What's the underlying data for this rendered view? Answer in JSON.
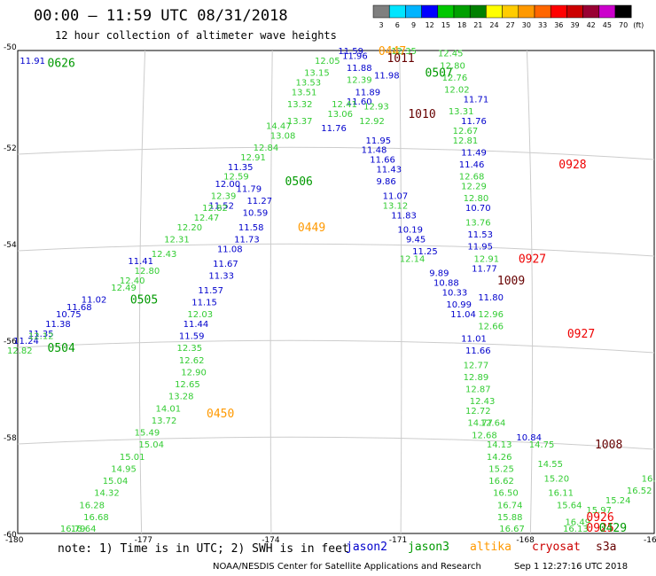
{
  "header": {
    "title": "00:00 – 11:59 UTC 08/31/2018",
    "subtitle": "12 hour collection of altimeter wave heights"
  },
  "colorbar": {
    "unit_label": "(ft)",
    "labels": [
      "3",
      "6",
      "9",
      "12",
      "15",
      "18",
      "21",
      "24",
      "27",
      "30",
      "33",
      "36",
      "39",
      "42",
      "45",
      "70"
    ],
    "colors": [
      "#7f7f7f",
      "#00e5ff",
      "#00b4ff",
      "#0000ff",
      "#00c800",
      "#00a000",
      "#008000",
      "#ffff00",
      "#ffcc00",
      "#ff9900",
      "#ff6600",
      "#ff0000",
      "#cc0000",
      "#990033",
      "#cc00cc",
      "#000000"
    ]
  },
  "axes": {
    "x_ticks": [
      "-180",
      "-177",
      "-174",
      "-171",
      "-168",
      "-16"
    ],
    "y_ticks": [
      "-50",
      "-52",
      "-54",
      "-56",
      "-58",
      "-60"
    ]
  },
  "legend": [
    {
      "label": "jason2",
      "color": "#0000cc"
    },
    {
      "label": "jason3",
      "color": "#009900"
    },
    {
      "label": "altika",
      "color": "#ff9900"
    },
    {
      "label": "cryosat",
      "color": "#cc0000"
    },
    {
      "label": "s3a",
      "color": "#660000"
    }
  ],
  "footer": {
    "note": "note: 1) Time is in UTC; 2) SWH is in feet",
    "credit": "NOAA/NESDIS Center for Satellite Applications and Research",
    "timestamp": "Sep  1 12:27:16 UTC 2018"
  },
  "map_labels": {
    "times": [
      {
        "t": "0626",
        "lon": -179.3,
        "lat": -50.25,
        "sat": "jason3"
      },
      {
        "t": "0507",
        "lon": -170.4,
        "lat": -50.45,
        "sat": "jason3"
      },
      {
        "t": "0506",
        "lon": -173.7,
        "lat": -52.7,
        "sat": "jason3"
      },
      {
        "t": "0505",
        "lon": -177.35,
        "lat": -55.15,
        "sat": "jason3"
      },
      {
        "t": "0504",
        "lon": -179.3,
        "lat": -56.15,
        "sat": "jason3"
      },
      {
        "t": "0449",
        "lon": -173.4,
        "lat": -53.65,
        "sat": "altika"
      },
      {
        "t": "0450",
        "lon": -175.55,
        "lat": -57.5,
        "sat": "altika"
      },
      {
        "t": "0447",
        "lon": -171.5,
        "lat": -50.0,
        "sat": "altika"
      },
      {
        "t": "1011",
        "lon": -171.3,
        "lat": -50.15,
        "sat": "s3a"
      },
      {
        "t": "1010",
        "lon": -170.8,
        "lat": -51.3,
        "sat": "s3a"
      },
      {
        "t": "1009",
        "lon": -168.7,
        "lat": -54.75,
        "sat": "s3a"
      },
      {
        "t": "1008",
        "lon": -166.4,
        "lat": -58.15,
        "sat": "s3a"
      },
      {
        "t": "0928",
        "lon": -167.25,
        "lat": -52.35,
        "sat": "cryosat"
      },
      {
        "t": "0927",
        "lon": -168.2,
        "lat": -54.3,
        "sat": "cryosat"
      },
      {
        "t": "0927",
        "lon": -167.05,
        "lat": -55.85,
        "sat": "cryosat"
      },
      {
        "t": "0926",
        "lon": -166.6,
        "lat": -59.65,
        "sat": "cryosat"
      },
      {
        "t": "0925",
        "lon": -166.6,
        "lat": -59.95,
        "sat": "cryosat"
      },
      {
        "t": "0429",
        "lon": -166.3,
        "lat": -60.0,
        "sat": "jason3"
      }
    ],
    "values": [
      {
        "v": "11.91",
        "lon": -179.7,
        "lat": -50.2,
        "sat": "jason2"
      },
      {
        "v": "11.59",
        "lon": -172.2,
        "lat": -50.0,
        "sat": "jason2"
      },
      {
        "v": "11.96",
        "lon": -172.1,
        "lat": -50.1,
        "sat": "jason2"
      },
      {
        "v": "11.88",
        "lon": -172.0,
        "lat": -50.35,
        "sat": "jason2"
      },
      {
        "v": "11.98",
        "lon": -171.35,
        "lat": -50.5,
        "sat": "jason2"
      },
      {
        "v": "11.89",
        "lon": -171.8,
        "lat": -50.85,
        "sat": "jason2"
      },
      {
        "v": "11.60",
        "lon": -172.0,
        "lat": -51.05,
        "sat": "jason2"
      },
      {
        "v": "11.76",
        "lon": -172.6,
        "lat": -51.6,
        "sat": "jason2"
      },
      {
        "v": "11.95",
        "lon": -171.55,
        "lat": -51.85,
        "sat": "jason2"
      },
      {
        "v": "11.48",
        "lon": -171.65,
        "lat": -52.05,
        "sat": "jason2"
      },
      {
        "v": "11.66",
        "lon": -171.45,
        "lat": -52.25,
        "sat": "jason2"
      },
      {
        "v": "11.43",
        "lon": -171.3,
        "lat": -52.45,
        "sat": "jason2"
      },
      {
        "v": "9.86",
        "lon": -171.3,
        "lat": -52.7,
        "sat": "jason2"
      },
      {
        "v": "11.07",
        "lon": -171.15,
        "lat": -53.0,
        "sat": "jason2"
      },
      {
        "v": "11.83",
        "lon": -170.95,
        "lat": -53.4,
        "sat": "jason2"
      },
      {
        "v": "10.19",
        "lon": -170.8,
        "lat": -53.7,
        "sat": "jason2"
      },
      {
        "v": "9.45",
        "lon": -170.6,
        "lat": -53.9,
        "sat": "jason2"
      },
      {
        "v": "11.25",
        "lon": -170.45,
        "lat": -54.15,
        "sat": "jason2"
      },
      {
        "v": "9.89",
        "lon": -170.05,
        "lat": -54.6,
        "sat": "jason2"
      },
      {
        "v": "10.88",
        "lon": -169.95,
        "lat": -54.8,
        "sat": "jason2"
      },
      {
        "v": "10.33",
        "lon": -169.75,
        "lat": -55.0,
        "sat": "jason2"
      },
      {
        "v": "10.99",
        "lon": -169.65,
        "lat": -55.25,
        "sat": "jason2"
      },
      {
        "v": "11.04",
        "lon": -169.55,
        "lat": -55.45,
        "sat": "jason2"
      },
      {
        "v": "11.01",
        "lon": -169.3,
        "lat": -55.95,
        "sat": "jason2"
      },
      {
        "v": "11.66",
        "lon": -169.2,
        "lat": -56.2,
        "sat": "jason2"
      },
      {
        "v": "10.84",
        "lon": -168.0,
        "lat": -58.0,
        "sat": "jason2"
      },
      {
        "v": "11.71",
        "lon": -169.25,
        "lat": -51.0,
        "sat": "jason2"
      },
      {
        "v": "11.76",
        "lon": -169.3,
        "lat": -51.45,
        "sat": "jason2"
      },
      {
        "v": "11.49",
        "lon": -169.3,
        "lat": -52.1,
        "sat": "jason2"
      },
      {
        "v": "11.46",
        "lon": -169.35,
        "lat": -52.35,
        "sat": "jason2"
      },
      {
        "v": "10.70",
        "lon": -169.2,
        "lat": -53.25,
        "sat": "jason2"
      },
      {
        "v": "11.53",
        "lon": -169.15,
        "lat": -53.8,
        "sat": "jason2"
      },
      {
        "v": "11.95",
        "lon": -169.15,
        "lat": -54.05,
        "sat": "jason2"
      },
      {
        "v": "11.77",
        "lon": -169.05,
        "lat": -54.5,
        "sat": "jason2"
      },
      {
        "v": "11.80",
        "lon": -168.9,
        "lat": -55.1,
        "sat": "jason2"
      },
      {
        "v": "11.35",
        "lon": -174.8,
        "lat": -52.4,
        "sat": "jason2"
      },
      {
        "v": "11.79",
        "lon": -174.6,
        "lat": -52.85,
        "sat": "jason2"
      },
      {
        "v": "12.00",
        "lon": -175.1,
        "lat": -52.75,
        "sat": "jason2"
      },
      {
        "v": "11.27",
        "lon": -174.35,
        "lat": -53.1,
        "sat": "jason2"
      },
      {
        "v": "11.52",
        "lon": -175.25,
        "lat": -53.2,
        "sat": "jason2"
      },
      {
        "v": "10.59",
        "lon": -174.45,
        "lat": -53.35,
        "sat": "jason2"
      },
      {
        "v": "11.58",
        "lon": -174.55,
        "lat": -53.65,
        "sat": "jason2"
      },
      {
        "v": "11.08",
        "lon": -175.05,
        "lat": -54.1,
        "sat": "jason2"
      },
      {
        "v": "11.73",
        "lon": -174.65,
        "lat": -53.9,
        "sat": "jason2"
      },
      {
        "v": "11.67",
        "lon": -175.15,
        "lat": -54.4,
        "sat": "jason2"
      },
      {
        "v": "11.33",
        "lon": -175.25,
        "lat": -54.65,
        "sat": "jason2"
      },
      {
        "v": "11.57",
        "lon": -175.5,
        "lat": -54.95,
        "sat": "jason2"
      },
      {
        "v": "11.15",
        "lon": -175.65,
        "lat": -55.2,
        "sat": "jason2"
      },
      {
        "v": "11.44",
        "lon": -175.85,
        "lat": -55.65,
        "sat": "jason2"
      },
      {
        "v": "11.59",
        "lon": -175.95,
        "lat": -55.9,
        "sat": "jason2"
      },
      {
        "v": "11.41",
        "lon": -177.15,
        "lat": -54.35,
        "sat": "jason2"
      },
      {
        "v": "11.02",
        "lon": -178.25,
        "lat": -55.15,
        "sat": "jason2"
      },
      {
        "v": "11.68",
        "lon": -178.6,
        "lat": -55.3,
        "sat": "jason2"
      },
      {
        "v": "10.75",
        "lon": -178.85,
        "lat": -55.45,
        "sat": "jason2"
      },
      {
        "v": "11.38",
        "lon": -179.1,
        "lat": -55.65,
        "sat": "jason2"
      },
      {
        "v": "11.35",
        "lon": -179.5,
        "lat": -55.85,
        "sat": "jason2"
      },
      {
        "v": "11.24",
        "lon": -179.85,
        "lat": -56.0,
        "sat": "jason2"
      },
      {
        "v": "12.82",
        "lon": -180.0,
        "lat": -56.2,
        "sat": "jason3"
      },
      {
        "v": "12.12",
        "lon": -179.5,
        "lat": -55.9,
        "sat": "jason3"
      },
      {
        "v": "12.35",
        "lon": -176.0,
        "lat": -56.15,
        "sat": "jason3"
      },
      {
        "v": "12.62",
        "lon": -175.95,
        "lat": -56.4,
        "sat": "jason3"
      },
      {
        "v": "12.90",
        "lon": -175.9,
        "lat": -56.65,
        "sat": "jason3"
      },
      {
        "v": "12.65",
        "lon": -176.05,
        "lat": -56.9,
        "sat": "jason3"
      },
      {
        "v": "13.28",
        "lon": -176.2,
        "lat": -57.15,
        "sat": "jason3"
      },
      {
        "v": "14.01",
        "lon": -176.5,
        "lat": -57.4,
        "sat": "jason3"
      },
      {
        "v": "13.72",
        "lon": -176.6,
        "lat": -57.65,
        "sat": "jason3"
      },
      {
        "v": "15.49",
        "lon": -177.0,
        "lat": -57.9,
        "sat": "jason3"
      },
      {
        "v": "15.04",
        "lon": -176.9,
        "lat": -58.15,
        "sat": "jason3"
      },
      {
        "v": "15.01",
        "lon": -177.35,
        "lat": -58.4,
        "sat": "jason3"
      },
      {
        "v": "14.95",
        "lon": -177.55,
        "lat": -58.65,
        "sat": "jason3"
      },
      {
        "v": "15.04",
        "lon": -177.75,
        "lat": -58.9,
        "sat": "jason3"
      },
      {
        "v": "14.32",
        "lon": -177.95,
        "lat": -59.15,
        "sat": "jason3"
      },
      {
        "v": "16.28",
        "lon": -178.3,
        "lat": -59.4,
        "sat": "jason3"
      },
      {
        "v": "16.68",
        "lon": -178.2,
        "lat": -59.65,
        "sat": "jason3"
      },
      {
        "v": "16.64",
        "lon": -178.5,
        "lat": -59.9,
        "sat": "jason3"
      },
      {
        "v": "16.79",
        "lon": -178.75,
        "lat": -60.15,
        "sat": "jason3"
      },
      {
        "v": "12.03",
        "lon": -175.75,
        "lat": -55.45,
        "sat": "jason3"
      },
      {
        "v": "12.80",
        "lon": -177.0,
        "lat": -54.55,
        "sat": "jason3"
      },
      {
        "v": "12.40",
        "lon": -177.35,
        "lat": -54.75,
        "sat": "jason3"
      },
      {
        "v": "12.49",
        "lon": -177.55,
        "lat": -54.9,
        "sat": "jason3"
      },
      {
        "v": "12.43",
        "lon": -176.6,
        "lat": -54.2,
        "sat": "jason3"
      },
      {
        "v": "12.31",
        "lon": -176.3,
        "lat": -53.9,
        "sat": "jason3"
      },
      {
        "v": "12.20",
        "lon": -176.0,
        "lat": -53.65,
        "sat": "jason3"
      },
      {
        "v": "12.47",
        "lon": -175.6,
        "lat": -53.45,
        "sat": "jason3"
      },
      {
        "v": "12.82",
        "lon": -175.4,
        "lat": -53.25,
        "sat": "jason3"
      },
      {
        "v": "12.39",
        "lon": -175.2,
        "lat": -53.0,
        "sat": "jason3"
      },
      {
        "v": "12.59",
        "lon": -174.9,
        "lat": -52.6,
        "sat": "jason3"
      },
      {
        "v": "12.91",
        "lon": -174.5,
        "lat": -52.2,
        "sat": "jason3"
      },
      {
        "v": "12.84",
        "lon": -174.2,
        "lat": -52.0,
        "sat": "jason3"
      },
      {
        "v": "13.08",
        "lon": -173.8,
        "lat": -51.75,
        "sat": "jason3"
      },
      {
        "v": "14.47",
        "lon": -173.9,
        "lat": -51.55,
        "sat": "jason3"
      },
      {
        "v": "13.37",
        "lon": -173.4,
        "lat": -51.45,
        "sat": "jason3"
      },
      {
        "v": "13.32",
        "lon": -173.4,
        "lat": -51.1,
        "sat": "jason3"
      },
      {
        "v": "13.51",
        "lon": -173.3,
        "lat": -50.85,
        "sat": "jason3"
      },
      {
        "v": "13.53",
        "lon": -173.2,
        "lat": -50.65,
        "sat": "jason3"
      },
      {
        "v": "13.15",
        "lon": -173.0,
        "lat": -50.45,
        "sat": "jason3"
      },
      {
        "v": "12.05",
        "lon": -172.75,
        "lat": -50.2,
        "sat": "jason3"
      },
      {
        "v": "13.06",
        "lon": -172.45,
        "lat": -51.3,
        "sat": "jason3"
      },
      {
        "v": "12.41",
        "lon": -172.35,
        "lat": -51.1,
        "sat": "jason3"
      },
      {
        "v": "12.39",
        "lon": -172.0,
        "lat": -50.6,
        "sat": "jason3"
      },
      {
        "v": "12.93",
        "lon": -171.6,
        "lat": -51.15,
        "sat": "jason3"
      },
      {
        "v": "12.92",
        "lon": -171.7,
        "lat": -51.45,
        "sat": "jason3"
      },
      {
        "v": "12.35",
        "lon": -170.95,
        "lat": -50.0,
        "sat": "jason3"
      },
      {
        "v": "12.45",
        "lon": -169.85,
        "lat": -50.05,
        "sat": "jason3"
      },
      {
        "v": "12.80",
        "lon": -169.8,
        "lat": -50.3,
        "sat": "jason3"
      },
      {
        "v": "12.76",
        "lon": -169.75,
        "lat": -50.55,
        "sat": "jason3"
      },
      {
        "v": "12.02",
        "lon": -169.7,
        "lat": -50.8,
        "sat": "jason3"
      },
      {
        "v": "13.31",
        "lon": -169.6,
        "lat": -51.25,
        "sat": "jason3"
      },
      {
        "v": "12.67",
        "lon": -169.5,
        "lat": -51.65,
        "sat": "jason3"
      },
      {
        "v": "12.81",
        "lon": -169.5,
        "lat": -51.85,
        "sat": "jason3"
      },
      {
        "v": "12.68",
        "lon": -169.35,
        "lat": -52.6,
        "sat": "jason3"
      },
      {
        "v": "12.29",
        "lon": -169.3,
        "lat": -52.8,
        "sat": "jason3"
      },
      {
        "v": "12.80",
        "lon": -169.25,
        "lat": -53.05,
        "sat": "jason3"
      },
      {
        "v": "13.76",
        "lon": -169.2,
        "lat": -53.55,
        "sat": "jason3"
      },
      {
        "v": "13.12",
        "lon": -171.15,
        "lat": -53.2,
        "sat": "jason3"
      },
      {
        "v": "12.14",
        "lon": -170.75,
        "lat": -54.3,
        "sat": "jason3"
      },
      {
        "v": "12.91",
        "lon": -169.0,
        "lat": -54.3,
        "sat": "jason3"
      },
      {
        "v": "12.96",
        "lon": -168.9,
        "lat": -55.45,
        "sat": "jason3"
      },
      {
        "v": "12.66",
        "lon": -168.9,
        "lat": -55.7,
        "sat": "jason3"
      },
      {
        "v": "14.13",
        "lon": -168.7,
        "lat": -58.15,
        "sat": "jason3"
      },
      {
        "v": "14.26",
        "lon": -168.7,
        "lat": -58.4,
        "sat": "jason3"
      },
      {
        "v": "15.25",
        "lon": -168.65,
        "lat": -58.65,
        "sat": "jason3"
      },
      {
        "v": "16.62",
        "lon": -168.65,
        "lat": -58.9,
        "sat": "jason3"
      },
      {
        "v": "16.50",
        "lon": -168.55,
        "lat": -59.15,
        "sat": "jason3"
      },
      {
        "v": "16.74",
        "lon": -168.45,
        "lat": -59.4,
        "sat": "jason3"
      },
      {
        "v": "15.88",
        "lon": -168.45,
        "lat": -59.65,
        "sat": "jason3"
      },
      {
        "v": "16.67",
        "lon": -168.4,
        "lat": -59.9,
        "sat": "jason3"
      },
      {
        "v": "14.75",
        "lon": -167.7,
        "lat": -58.15,
        "sat": "jason3"
      },
      {
        "v": "14.55",
        "lon": -167.5,
        "lat": -58.55,
        "sat": "jason3"
      },
      {
        "v": "15.20",
        "lon": -167.35,
        "lat": -58.85,
        "sat": "jason3"
      },
      {
        "v": "16.11",
        "lon": -167.25,
        "lat": -59.15,
        "sat": "jason3"
      },
      {
        "v": "15.64",
        "lon": -167.05,
        "lat": -59.4,
        "sat": "jason3"
      },
      {
        "v": "15.97",
        "lon": -166.35,
        "lat": -59.5,
        "sat": "jason3"
      },
      {
        "v": "15.24",
        "lon": -165.9,
        "lat": -59.3,
        "sat": "jason3"
      },
      {
        "v": "16.52",
        "lon": -165.4,
        "lat": -59.1,
        "sat": "jason3"
      },
      {
        "v": "16.91",
        "lon": -165.05,
        "lat": -58.85,
        "sat": "jason3"
      },
      {
        "v": "15.82",
        "lon": -164.7,
        "lat": -58.6,
        "sat": "jason3"
      },
      {
        "v": "16.13",
        "lon": -166.9,
        "lat": -59.95,
        "sat": "jason3"
      },
      {
        "v": "16.49",
        "lon": -166.85,
        "lat": -59.75,
        "sat": "jason3"
      },
      {
        "v": "12.77",
        "lon": -169.25,
        "lat": -56.5,
        "sat": "jason3"
      },
      {
        "v": "12.89",
        "lon": -169.25,
        "lat": -56.75,
        "sat": "jason3"
      },
      {
        "v": "12.87",
        "lon": -169.2,
        "lat": -57.0,
        "sat": "jason3"
      },
      {
        "v": "12.43",
        "lon": -169.1,
        "lat": -57.25,
        "sat": "jason3"
      },
      {
        "v": "12.72",
        "lon": -169.2,
        "lat": -57.45,
        "sat": "jason3"
      },
      {
        "v": "12.64",
        "lon": -168.85,
        "lat": -57.7,
        "sat": "jason3"
      },
      {
        "v": "14.77",
        "lon": -169.15,
        "lat": -57.7,
        "sat": "jason3"
      },
      {
        "v": "12.68",
        "lon": -169.05,
        "lat": -57.95,
        "sat": "jason3"
      }
    ]
  }
}
